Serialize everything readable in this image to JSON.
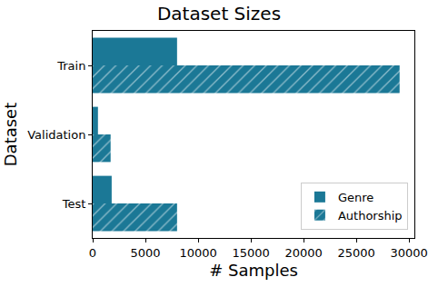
{
  "chart_data": {
    "type": "bar",
    "title": "Dataset Sizes",
    "orientation": "horizontal",
    "x_label": "# Samples",
    "y_label": "Dataset",
    "categories": [
      "Train",
      "Validation",
      "Test"
    ],
    "series": [
      {
        "name": "Genre",
        "color": "#1b7896",
        "marker": "solid",
        "values": [
          8000,
          500,
          1800
        ]
      },
      {
        "name": "Authorship",
        "color": "#1b7896",
        "marker": "hatch",
        "values": [
          29100,
          1700,
          8000
        ]
      }
    ],
    "xlim": [
      0,
      30500
    ],
    "xticks": [
      0,
      5000,
      10000,
      15000,
      20000,
      25000,
      30000
    ],
    "grid": false,
    "legend": "lower right"
  }
}
